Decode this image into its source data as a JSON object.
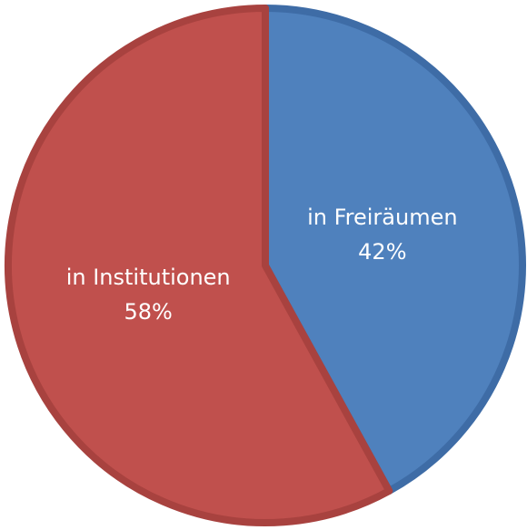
{
  "chart_data": {
    "type": "pie",
    "categories": [
      "in Freiräumen",
      "in Institutionen"
    ],
    "values": [
      42,
      58
    ],
    "value_labels": [
      "42%",
      "58%"
    ],
    "colors": [
      "#4f81bd",
      "#c0504d"
    ],
    "edge_colors": [
      "#3e6ca6",
      "#a8423f"
    ]
  }
}
